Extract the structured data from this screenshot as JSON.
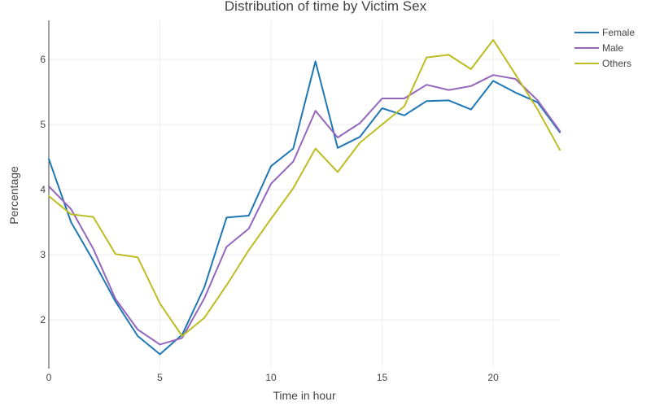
{
  "chart_data": {
    "type": "line",
    "title": "Distribution of time by Victim Sex",
    "xlabel": "Time in hour",
    "ylabel": "Percentage",
    "xlim": [
      0,
      23
    ],
    "ylim": [
      1.25,
      6.6
    ],
    "x_ticks": [
      "0",
      "5",
      "10",
      "15",
      "20"
    ],
    "y_ticks": [
      "2",
      "3",
      "4",
      "5",
      "6"
    ],
    "grid": true,
    "legend_position": "top-right",
    "x": [
      0,
      1,
      2,
      3,
      4,
      5,
      6,
      7,
      8,
      9,
      10,
      11,
      12,
      13,
      14,
      15,
      16,
      17,
      18,
      19,
      20,
      21,
      22,
      23
    ],
    "series": [
      {
        "name": "Female",
        "color": "#1f77b4",
        "values": [
          4.47,
          3.5,
          2.91,
          2.28,
          1.75,
          1.47,
          1.77,
          2.5,
          3.57,
          3.6,
          4.36,
          4.63,
          5.97,
          4.64,
          4.81,
          5.25,
          5.14,
          5.36,
          5.37,
          5.23,
          5.67,
          5.49,
          5.34,
          4.88
        ]
      },
      {
        "name": "Male",
        "color": "#9467bd",
        "values": [
          4.05,
          3.7,
          3.09,
          2.32,
          1.85,
          1.62,
          1.72,
          2.33,
          3.12,
          3.4,
          4.09,
          4.43,
          5.21,
          4.8,
          5.02,
          5.4,
          5.4,
          5.61,
          5.53,
          5.59,
          5.76,
          5.7,
          5.37,
          4.9
        ]
      },
      {
        "name": "Others",
        "color": "#bcbd22",
        "values": [
          3.9,
          3.62,
          3.58,
          3.01,
          2.96,
          2.25,
          1.75,
          2.03,
          2.53,
          3.07,
          3.55,
          4.02,
          4.63,
          4.27,
          4.72,
          5.0,
          5.28,
          6.03,
          6.07,
          5.85,
          6.3,
          5.77,
          5.23,
          4.61
        ]
      }
    ]
  }
}
